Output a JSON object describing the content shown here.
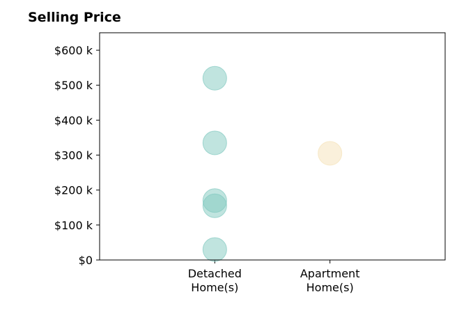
{
  "chart_data": {
    "type": "scatter",
    "title": "Selling Price",
    "xlabel": "",
    "ylabel": "",
    "categories": [
      "Detached\nHome(s)",
      "Apartment\nHome(s)"
    ],
    "y_tick_labels": [
      "$0",
      "$100 k",
      "$200 k",
      "$300 k",
      "$400 k",
      "$500 k",
      "$600 k"
    ],
    "y_ticks": [
      0,
      100000,
      200000,
      300000,
      400000,
      500000,
      600000
    ],
    "ylim": [
      0,
      650000
    ],
    "x_range": [
      -1,
      2
    ],
    "grid": false,
    "series": [
      {
        "category": "Detached\nHome(s)",
        "color": "#81c9c0",
        "values": [
          520000,
          335000,
          170000,
          155000,
          30000
        ]
      },
      {
        "category": "Apartment\nHome(s)",
        "color": "#f5e2b8",
        "values": [
          305000
        ]
      }
    ]
  }
}
